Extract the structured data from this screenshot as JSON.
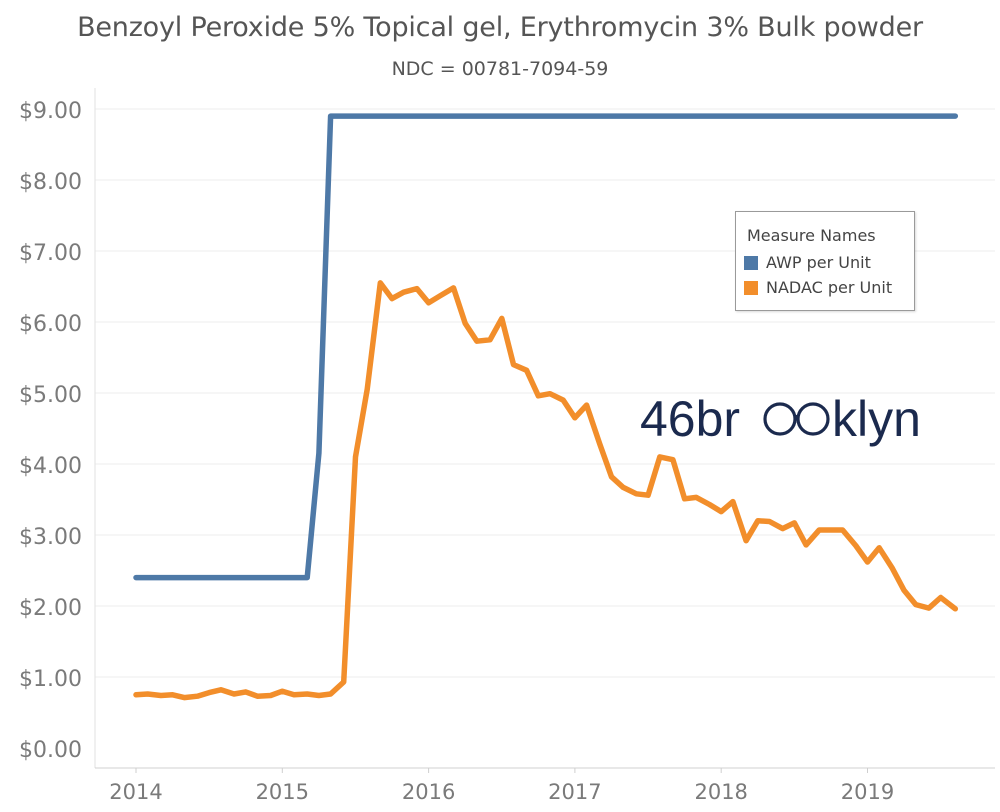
{
  "chart_data": {
    "type": "line",
    "title": "Benzoyl Peroxide 5% Topical gel, Erythromycin 3% Bulk powder",
    "subtitle": "NDC = 00781-7094-59",
    "xlabel": "",
    "ylabel": "",
    "xlim": [
      2013.6,
      2019.85
    ],
    "ylim": [
      -0.2,
      9.6
    ],
    "x_ticks": [
      2014,
      2015,
      2016,
      2017,
      2018,
      2019
    ],
    "x_tick_labels": [
      "2014",
      "2015",
      "2016",
      "2017",
      "2018",
      "2019"
    ],
    "y_ticks": [
      0,
      1,
      2,
      3,
      4,
      5,
      6,
      7,
      8,
      9
    ],
    "y_tick_labels": [
      "$0.00",
      "$1.00",
      "$2.00",
      "$3.00",
      "$4.00",
      "$5.00",
      "$6.00",
      "$7.00",
      "$8.00",
      "$9.00"
    ],
    "grid": "horizontal",
    "legend": {
      "title": "Measure Names",
      "placement": "right",
      "entries": [
        "AWP per Unit",
        "NADAC per Unit"
      ]
    },
    "series": [
      {
        "name": "AWP per Unit",
        "color": "#4e79a7",
        "x": [
          2014.0,
          2015.17,
          2015.25,
          2015.33,
          2019.6
        ],
        "y": [
          2.4,
          2.4,
          4.15,
          8.9,
          8.9
        ]
      },
      {
        "name": "NADAC per Unit",
        "color": "#f28e2b",
        "x": [
          2014.0,
          2014.08,
          2014.17,
          2014.25,
          2014.33,
          2014.42,
          2014.5,
          2014.58,
          2014.67,
          2014.75,
          2014.83,
          2014.92,
          2015.0,
          2015.08,
          2015.17,
          2015.25,
          2015.33,
          2015.42,
          2015.5,
          2015.58,
          2015.67,
          2015.75,
          2015.83,
          2015.92,
          2016.0,
          2016.08,
          2016.17,
          2016.25,
          2016.33,
          2016.42,
          2016.5,
          2016.58,
          2016.67,
          2016.75,
          2016.83,
          2016.92,
          2017.0,
          2017.08,
          2017.17,
          2017.25,
          2017.33,
          2017.42,
          2017.5,
          2017.58,
          2017.67,
          2017.75,
          2017.83,
          2017.92,
          2018.0,
          2018.08,
          2018.17,
          2018.25,
          2018.33,
          2018.42,
          2018.5,
          2018.58,
          2018.67,
          2018.75,
          2018.83,
          2018.92,
          2019.0,
          2019.08,
          2019.17,
          2019.25,
          2019.33,
          2019.42,
          2019.5,
          2019.6
        ],
        "y": [
          0.75,
          0.76,
          0.74,
          0.75,
          0.71,
          0.73,
          0.78,
          0.82,
          0.76,
          0.79,
          0.73,
          0.74,
          0.8,
          0.75,
          0.76,
          0.74,
          0.76,
          0.93,
          4.1,
          5.05,
          6.55,
          6.33,
          6.42,
          6.47,
          6.27,
          6.37,
          6.48,
          5.98,
          5.73,
          5.75,
          6.05,
          5.4,
          5.32,
          4.96,
          4.99,
          4.9,
          4.65,
          4.83,
          4.28,
          3.82,
          3.67,
          3.58,
          3.56,
          4.1,
          4.06,
          3.51,
          3.53,
          3.43,
          3.33,
          3.47,
          2.92,
          3.2,
          3.19,
          3.09,
          3.17,
          2.86,
          3.07,
          3.07,
          3.07,
          2.85,
          2.62,
          2.82,
          2.53,
          2.22,
          2.02,
          1.97,
          2.12,
          1.96
        ]
      }
    ]
  },
  "watermark": {
    "text": "46brooklyn",
    "color": "#1b2a4e"
  }
}
